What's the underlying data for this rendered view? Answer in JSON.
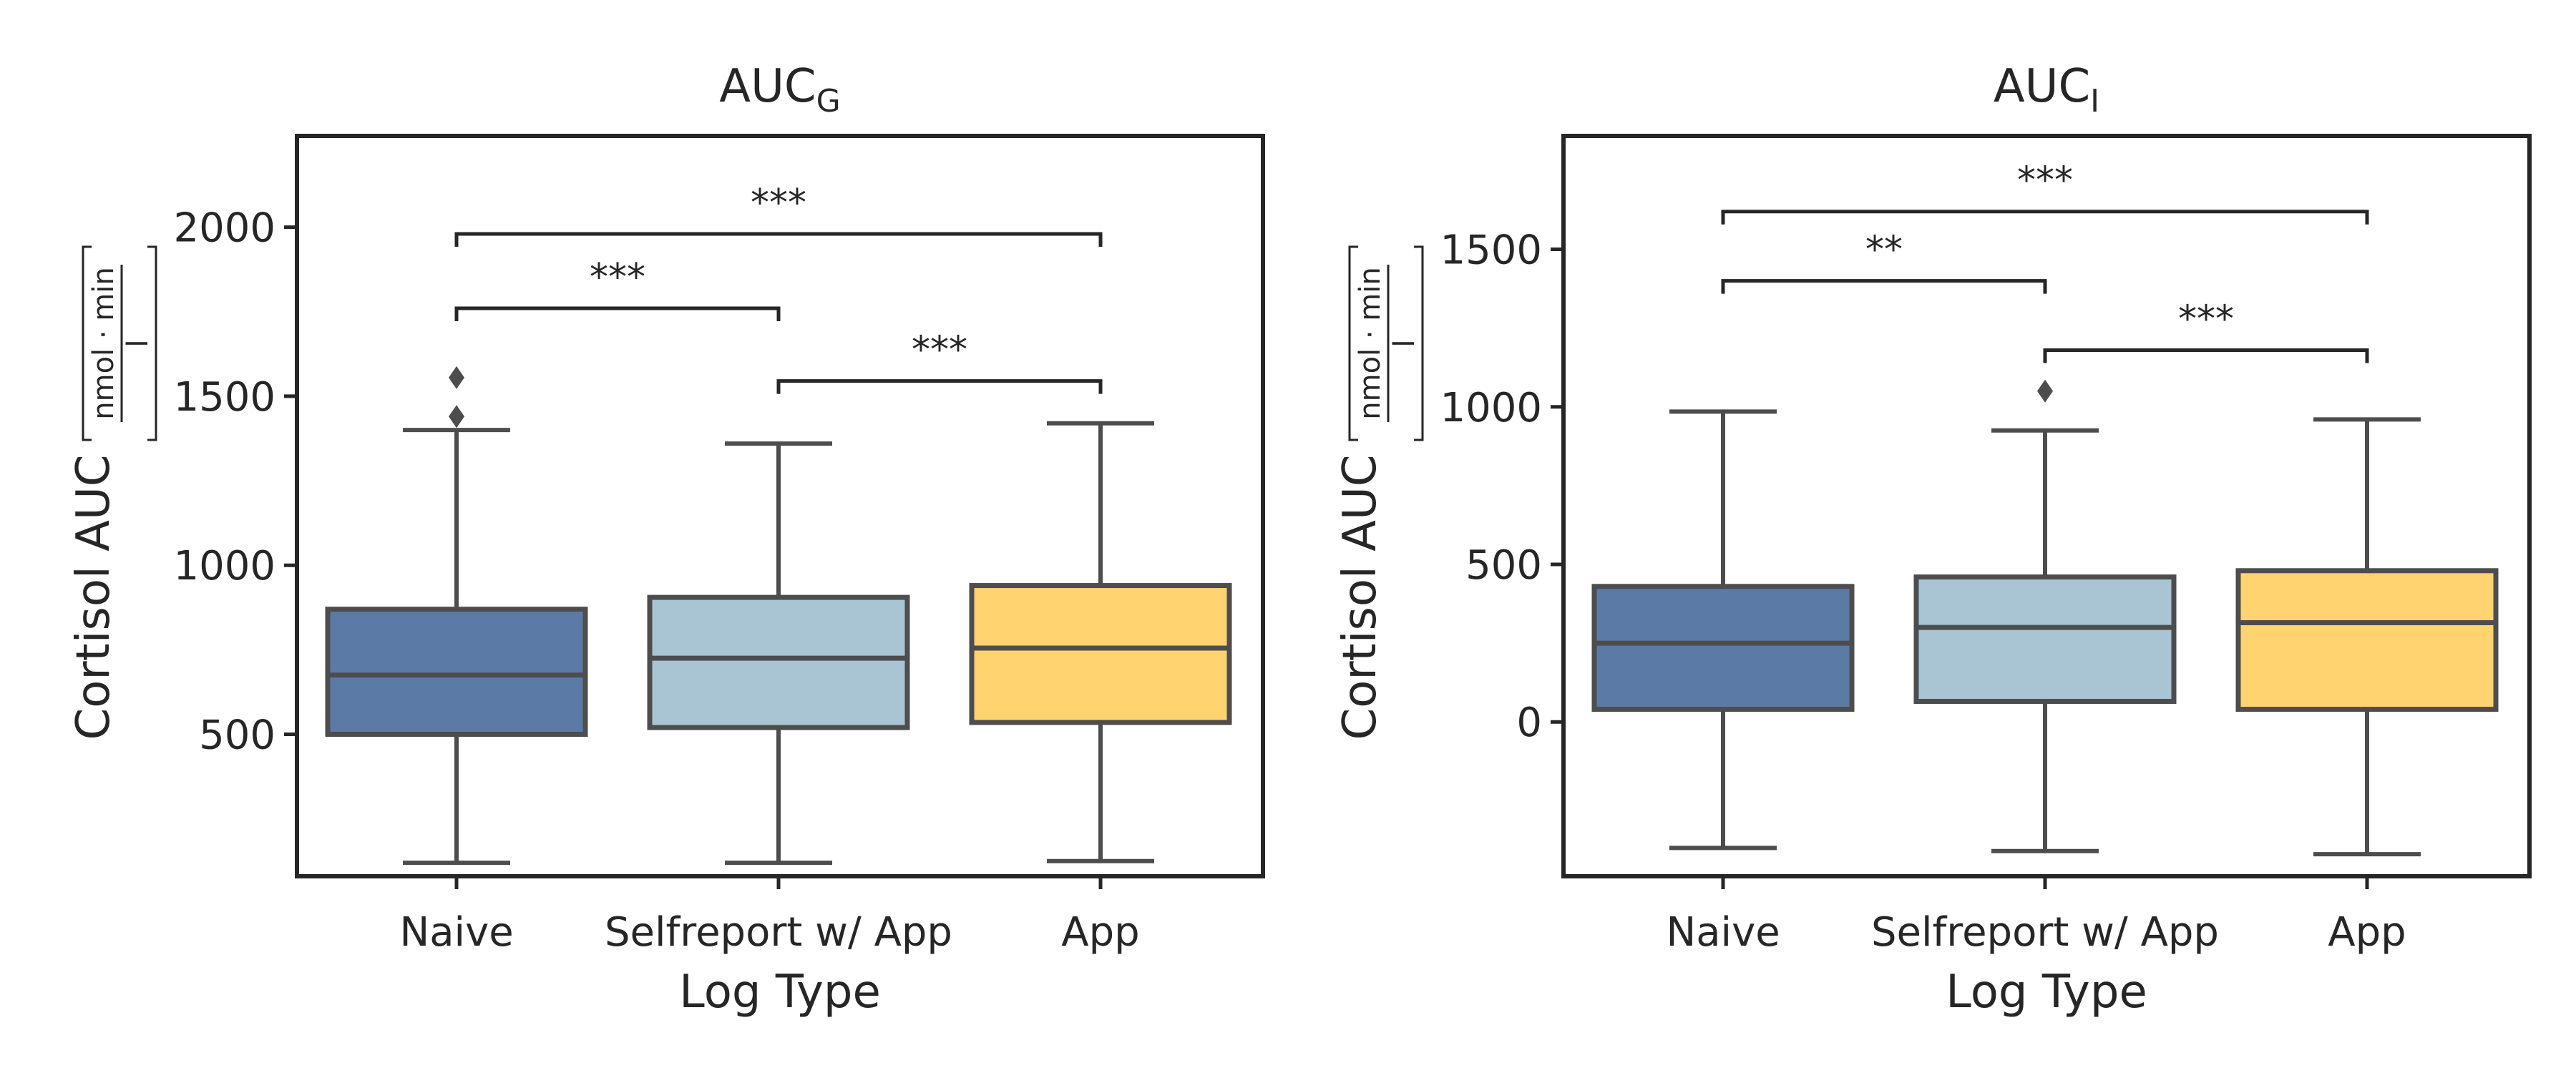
{
  "chart_data": [
    {
      "type": "box",
      "title": "AUC",
      "title_subscript": "G",
      "xlabel": "Log Type",
      "ylabel": "Cortisol AUC",
      "ylabel_unit_numerator": "nmol · min",
      "ylabel_unit_denominator": "l",
      "categories": [
        "Naive",
        "Selfreport w/ App",
        "App"
      ],
      "ylim": [
        80,
        2270
      ],
      "yticks": [
        500,
        1000,
        1500,
        2000
      ],
      "boxes": [
        {
          "category": "Naive",
          "whisker_low": 120,
          "q1": 500,
          "median": 675,
          "q3": 870,
          "whisker_high": 1400,
          "outliers": [
            1440,
            1555
          ]
        },
        {
          "category": "Selfreport w/ App",
          "whisker_low": 120,
          "q1": 520,
          "median": 725,
          "q3": 905,
          "whisker_high": 1360,
          "outliers": []
        },
        {
          "category": "App",
          "whisker_low": 125,
          "q1": 535,
          "median": 755,
          "q3": 940,
          "whisker_high": 1420,
          "outliers": []
        }
      ],
      "significance": [
        {
          "from": 0,
          "to": 2,
          "y": 1980,
          "label": "***"
        },
        {
          "from": 0,
          "to": 1,
          "y": 1760,
          "label": "***"
        },
        {
          "from": 1,
          "to": 2,
          "y": 1545,
          "label": "***"
        }
      ],
      "grid": false
    },
    {
      "type": "box",
      "title": "AUC",
      "title_subscript": "I",
      "xlabel": "Log Type",
      "ylabel": "Cortisol AUC",
      "ylabel_unit_numerator": "nmol · min",
      "ylabel_unit_denominator": "l",
      "categories": [
        "Naive",
        "Selfreport w/ App",
        "App"
      ],
      "ylim": [
        -490,
        1860
      ],
      "yticks": [
        0,
        500,
        1000,
        1500
      ],
      "boxes": [
        {
          "category": "Naive",
          "whisker_low": -400,
          "q1": 40,
          "median": 250,
          "q3": 430,
          "whisker_high": 985,
          "outliers": []
        },
        {
          "category": "Selfreport w/ App",
          "whisker_low": -410,
          "q1": 65,
          "median": 300,
          "q3": 460,
          "whisker_high": 925,
          "outliers": [
            1050
          ]
        },
        {
          "category": "App",
          "whisker_low": -420,
          "q1": 40,
          "median": 315,
          "q3": 480,
          "whisker_high": 960,
          "outliers": []
        }
      ],
      "significance": [
        {
          "from": 0,
          "to": 2,
          "y": 1620,
          "label": "***"
        },
        {
          "from": 0,
          "to": 1,
          "y": 1400,
          "label": "**"
        },
        {
          "from": 1,
          "to": 2,
          "y": 1180,
          "label": "***"
        }
      ],
      "grid": false
    }
  ],
  "colors": {
    "box_fill": [
      "#5b7ba6",
      "#a9c4d3",
      "#ffd370"
    ],
    "line": "#4d4d4d",
    "axis": "#262626",
    "text": "#262626"
  }
}
